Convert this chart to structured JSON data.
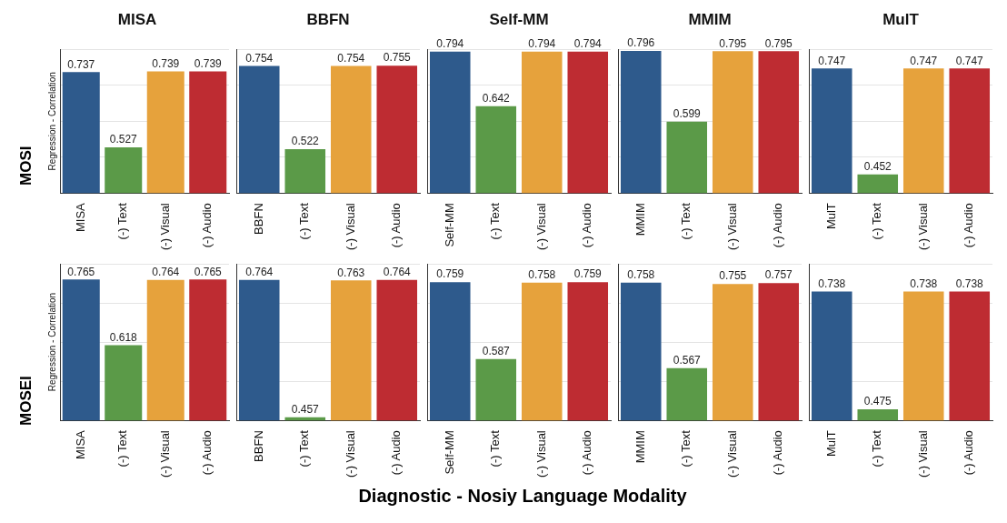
{
  "chart_data": [
    {
      "type": "bar",
      "title": "MISA",
      "ylabel": "Regression - Correlation",
      "annotations": [
        "MOSI"
      ],
      "categories": [
        "MISA",
        "(-) Text",
        "(-) Visual",
        "(-) Audio"
      ],
      "values": [
        0.737,
        0.527,
        0.739,
        0.739
      ],
      "colors": [
        "#2e5a8c",
        "#5b9a48",
        "#e6a23c",
        "#be2c32"
      ],
      "ylim": [
        0.4,
        0.8
      ],
      "yticks": [
        {
          "value": 0.4,
          "label": null
        },
        {
          "value": 0.5,
          "label": null
        },
        {
          "value": 0.6,
          "label": null
        },
        {
          "value": 0.7,
          "label": null
        },
        {
          "value": 0.8,
          "label": null
        }
      ],
      "tick_labels": "x",
      "grid": "y",
      "data_labels": true
    },
    {
      "type": "bar",
      "title": "BBFN",
      "categories": [
        "BBFN",
        "(-) Text",
        "(-) Visual",
        "(-) Audio"
      ],
      "values": [
        0.754,
        0.522,
        0.754,
        0.755
      ],
      "colors": [
        "#2e5a8c",
        "#5b9a48",
        "#e6a23c",
        "#be2c32"
      ],
      "ylim": [
        0.4,
        0.8
      ],
      "yticks": [
        {
          "value": 0.4,
          "label": null
        },
        {
          "value": 0.5,
          "label": null
        },
        {
          "value": 0.6,
          "label": null
        },
        {
          "value": 0.7,
          "label": null
        },
        {
          "value": 0.8,
          "label": null
        }
      ],
      "tick_labels": "x",
      "grid": "y",
      "data_labels": true
    },
    {
      "type": "bar",
      "title": "Self-MM",
      "categories": [
        "Self-MM",
        "(-) Text",
        "(-) Visual",
        "(-) Audio"
      ],
      "values": [
        0.794,
        0.642,
        0.794,
        0.794
      ],
      "colors": [
        "#2e5a8c",
        "#5b9a48",
        "#e6a23c",
        "#be2c32"
      ],
      "ylim": [
        0.4,
        0.8
      ],
      "yticks": [
        {
          "value": 0.4,
          "label": null
        },
        {
          "value": 0.5,
          "label": null
        },
        {
          "value": 0.6,
          "label": null
        },
        {
          "value": 0.7,
          "label": null
        },
        {
          "value": 0.8,
          "label": null
        }
      ],
      "tick_labels": "x",
      "grid": "y",
      "data_labels": true
    },
    {
      "type": "bar",
      "title": "MMIM",
      "categories": [
        "MMIM",
        "(-) Text",
        "(-) Visual",
        "(-) Audio"
      ],
      "values": [
        0.796,
        0.599,
        0.795,
        0.795
      ],
      "colors": [
        "#2e5a8c",
        "#5b9a48",
        "#e6a23c",
        "#be2c32"
      ],
      "ylim": [
        0.4,
        0.8
      ],
      "yticks": [
        {
          "value": 0.4,
          "label": null
        },
        {
          "value": 0.5,
          "label": null
        },
        {
          "value": 0.6,
          "label": null
        },
        {
          "value": 0.7,
          "label": null
        },
        {
          "value": 0.8,
          "label": null
        }
      ],
      "tick_labels": "x",
      "grid": "y",
      "data_labels": true
    },
    {
      "type": "bar",
      "title": "MulT",
      "categories": [
        "MulT",
        "(-) Text",
        "(-) Visual",
        "(-) Audio"
      ],
      "values": [
        0.747,
        0.452,
        0.747,
        0.747
      ],
      "colors": [
        "#2e5a8c",
        "#5b9a48",
        "#e6a23c",
        "#be2c32"
      ],
      "ylim": [
        0.4,
        0.8
      ],
      "yticks": [
        {
          "value": 0.4,
          "label": null
        },
        {
          "value": 0.5,
          "label": null
        },
        {
          "value": 0.6,
          "label": null
        },
        {
          "value": 0.7,
          "label": null
        },
        {
          "value": 0.8,
          "label": null
        }
      ],
      "tick_labels": "x",
      "grid": "y",
      "data_labels": true
    },
    {
      "type": "bar",
      "ylabel": "Regression - Correlation",
      "annotations": [
        "MOSEI"
      ],
      "categories": [
        "MISA",
        "(-) Text",
        "(-) Visual",
        "(-) Audio"
      ],
      "values": [
        0.765,
        0.618,
        0.764,
        0.765
      ],
      "colors": [
        "#2e5a8c",
        "#5b9a48",
        "#e6a23c",
        "#be2c32"
      ],
      "ylim": [
        0.45,
        0.8
      ],
      "yticks": [
        {
          "value": 0.45,
          "label": null
        },
        {
          "value": 0.5375,
          "label": null
        },
        {
          "value": 0.625,
          "label": null
        },
        {
          "value": 0.7125,
          "label": null
        },
        {
          "value": 0.8,
          "label": null
        }
      ],
      "tick_labels": "x",
      "grid": "y",
      "data_labels": true
    },
    {
      "type": "bar",
      "categories": [
        "BBFN",
        "(-) Text",
        "(-) Visual",
        "(-) Audio"
      ],
      "values": [
        0.764,
        0.457,
        0.763,
        0.764
      ],
      "colors": [
        "#2e5a8c",
        "#5b9a48",
        "#e6a23c",
        "#be2c32"
      ],
      "ylim": [
        0.45,
        0.8
      ],
      "yticks": [
        {
          "value": 0.45,
          "label": null
        },
        {
          "value": 0.5375,
          "label": null
        },
        {
          "value": 0.625,
          "label": null
        },
        {
          "value": 0.7125,
          "label": null
        },
        {
          "value": 0.8,
          "label": null
        }
      ],
      "tick_labels": "x",
      "grid": "y",
      "data_labels": true
    },
    {
      "type": "bar",
      "categories": [
        "Self-MM",
        "(-) Text",
        "(-) Visual",
        "(-) Audio"
      ],
      "values": [
        0.759,
        0.587,
        0.758,
        0.759
      ],
      "colors": [
        "#2e5a8c",
        "#5b9a48",
        "#e6a23c",
        "#be2c32"
      ],
      "ylim": [
        0.45,
        0.8
      ],
      "yticks": [
        {
          "value": 0.45,
          "label": null
        },
        {
          "value": 0.5375,
          "label": null
        },
        {
          "value": 0.625,
          "label": null
        },
        {
          "value": 0.7125,
          "label": null
        },
        {
          "value": 0.8,
          "label": null
        }
      ],
      "tick_labels": "x",
      "grid": "y",
      "data_labels": true
    },
    {
      "type": "bar",
      "categories": [
        "MMIM",
        "(-) Text",
        "(-) Visual",
        "(-) Audio"
      ],
      "values": [
        0.758,
        0.567,
        0.755,
        0.757
      ],
      "colors": [
        "#2e5a8c",
        "#5b9a48",
        "#e6a23c",
        "#be2c32"
      ],
      "ylim": [
        0.45,
        0.8
      ],
      "yticks": [
        {
          "value": 0.45,
          "label": null
        },
        {
          "value": 0.5375,
          "label": null
        },
        {
          "value": 0.625,
          "label": null
        },
        {
          "value": 0.7125,
          "label": null
        },
        {
          "value": 0.8,
          "label": null
        }
      ],
      "tick_labels": "x",
      "grid": "y",
      "data_labels": true
    },
    {
      "type": "bar",
      "annotations": [
        "Diagnostic - Nosiy Language Modality"
      ],
      "categories": [
        "MulT",
        "(-) Text",
        "(-) Visual",
        "(-) Audio"
      ],
      "values": [
        0.738,
        0.475,
        0.738,
        0.738
      ],
      "colors": [
        "#2e5a8c",
        "#5b9a48",
        "#e6a23c",
        "#be2c32"
      ],
      "ylim": [
        0.45,
        0.8
      ],
      "yticks": [
        {
          "value": 0.45,
          "label": null
        },
        {
          "value": 0.5375,
          "label": null
        },
        {
          "value": 0.625,
          "label": null
        },
        {
          "value": 0.7125,
          "label": null
        },
        {
          "value": 0.8,
          "label": null
        }
      ],
      "tick_labels": "x",
      "grid": "y",
      "data_labels": true
    }
  ]
}
